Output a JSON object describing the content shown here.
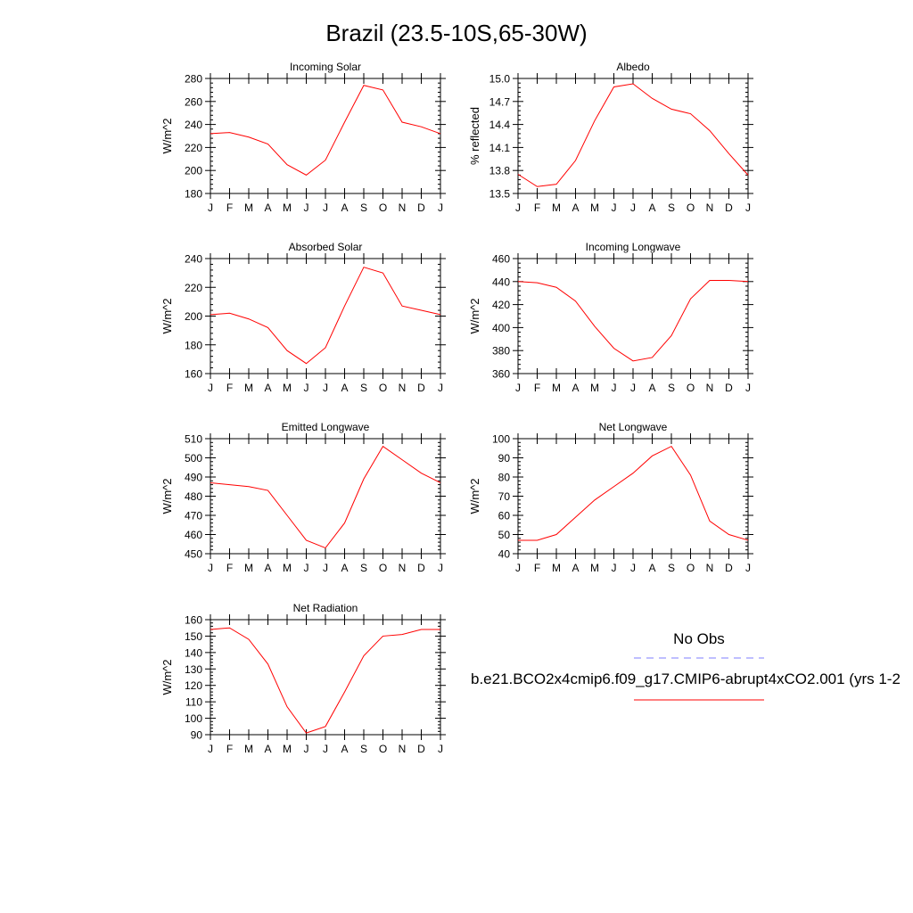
{
  "title": "Brazil (23.5-10S,65-30W)",
  "legend": {
    "obs_label": "No Obs",
    "obs_color": "#7f7fff",
    "model_label": "b.e21.BCO2x4cmip6.f09_g17.CMIP6-abrupt4xCO2.001 (yrs 1-2",
    "model_color": "#ff0000"
  },
  "chart_data": [
    {
      "type": "line",
      "title": "Incoming Solar",
      "ylabel": "W/m^2",
      "x": [
        "J",
        "F",
        "M",
        "A",
        "M",
        "J",
        "J",
        "A",
        "S",
        "O",
        "N",
        "D",
        "J"
      ],
      "ylim": [
        180,
        280
      ],
      "yticks": [
        180,
        200,
        220,
        240,
        260,
        280
      ],
      "ytick_labels": [
        "180",
        "200",
        "220",
        "240",
        "260",
        "280"
      ],
      "series": [
        {
          "values": [
            232,
            233,
            229,
            223,
            205,
            196,
            209,
            242,
            274,
            270,
            242,
            238,
            232
          ],
          "color": "#ff0000"
        }
      ]
    },
    {
      "type": "line",
      "title": "Albedo",
      "ylabel": "% reflected",
      "x": [
        "J",
        "F",
        "M",
        "A",
        "M",
        "J",
        "J",
        "A",
        "S",
        "O",
        "N",
        "D",
        "J"
      ],
      "ylim": [
        13.5,
        15.0
      ],
      "yticks": [
        13.5,
        13.8,
        14.1,
        14.4,
        14.7,
        15.0
      ],
      "ytick_labels": [
        "13.5",
        "13.8",
        "14.1",
        "14.4",
        "14.7",
        "15.0"
      ],
      "series": [
        {
          "values": [
            13.75,
            13.59,
            13.62,
            13.93,
            14.45,
            14.89,
            14.93,
            14.74,
            14.6,
            14.54,
            14.32,
            14.02,
            13.74
          ],
          "color": "#ff0000"
        }
      ]
    },
    {
      "type": "line",
      "title": "Absorbed Solar",
      "ylabel": "W/m^2",
      "x": [
        "J",
        "F",
        "M",
        "A",
        "M",
        "J",
        "J",
        "A",
        "S",
        "O",
        "N",
        "D",
        "J"
      ],
      "ylim": [
        160,
        240
      ],
      "yticks": [
        160,
        180,
        200,
        220,
        240
      ],
      "ytick_labels": [
        "160",
        "180",
        "200",
        "220",
        "240"
      ],
      "series": [
        {
          "values": [
            201,
            202,
            198,
            192,
            176,
            167,
            178,
            207,
            234,
            230,
            207,
            204,
            201
          ],
          "color": "#ff0000"
        }
      ]
    },
    {
      "type": "line",
      "title": "Incoming Longwave",
      "ylabel": "W/m^2",
      "x": [
        "J",
        "F",
        "M",
        "A",
        "M",
        "J",
        "J",
        "A",
        "S",
        "O",
        "N",
        "D",
        "J"
      ],
      "ylim": [
        360,
        460
      ],
      "yticks": [
        360,
        380,
        400,
        420,
        440,
        460
      ],
      "ytick_labels": [
        "360",
        "380",
        "400",
        "420",
        "440",
        "460"
      ],
      "series": [
        {
          "values": [
            440,
            439,
            435,
            423,
            401,
            382,
            371,
            374,
            393,
            425,
            441,
            441,
            440
          ],
          "color": "#ff0000"
        }
      ]
    },
    {
      "type": "line",
      "title": "Emitted Longwave",
      "ylabel": "W/m^2",
      "x": [
        "J",
        "F",
        "M",
        "A",
        "M",
        "J",
        "J",
        "A",
        "S",
        "O",
        "N",
        "D",
        "J"
      ],
      "ylim": [
        450,
        510
      ],
      "yticks": [
        450,
        460,
        470,
        480,
        490,
        500,
        510
      ],
      "ytick_labels": [
        "450",
        "460",
        "470",
        "480",
        "490",
        "500",
        "510"
      ],
      "series": [
        {
          "values": [
            487,
            486,
            485,
            483,
            470,
            457,
            453,
            466,
            489,
            506,
            499,
            492,
            487
          ],
          "color": "#ff0000"
        }
      ]
    },
    {
      "type": "line",
      "title": "Net Longwave",
      "ylabel": "W/m^2",
      "x": [
        "J",
        "F",
        "M",
        "A",
        "M",
        "J",
        "J",
        "A",
        "S",
        "O",
        "N",
        "D",
        "J"
      ],
      "ylim": [
        40,
        100
      ],
      "yticks": [
        40,
        50,
        60,
        70,
        80,
        90,
        100
      ],
      "ytick_labels": [
        "40",
        "50",
        "60",
        "70",
        "80",
        "90",
        "100"
      ],
      "series": [
        {
          "values": [
            47,
            47,
            50,
            59,
            68,
            75,
            82,
            91,
            96,
            81,
            57,
            50,
            47
          ],
          "color": "#ff0000"
        }
      ]
    },
    {
      "type": "line",
      "title": "Net Radiation",
      "ylabel": "W/m^2",
      "x": [
        "J",
        "F",
        "M",
        "A",
        "M",
        "J",
        "J",
        "A",
        "S",
        "O",
        "N",
        "D",
        "J"
      ],
      "ylim": [
        90,
        160
      ],
      "yticks": [
        90,
        100,
        110,
        120,
        130,
        140,
        150,
        160
      ],
      "ytick_labels": [
        "90",
        "100",
        "110",
        "120",
        "130",
        "140",
        "150",
        "160"
      ],
      "series": [
        {
          "values": [
            154,
            155,
            148,
            133,
            107,
            91,
            95,
            116,
            138,
            150,
            151,
            154,
            154
          ],
          "color": "#ff0000"
        }
      ]
    }
  ]
}
